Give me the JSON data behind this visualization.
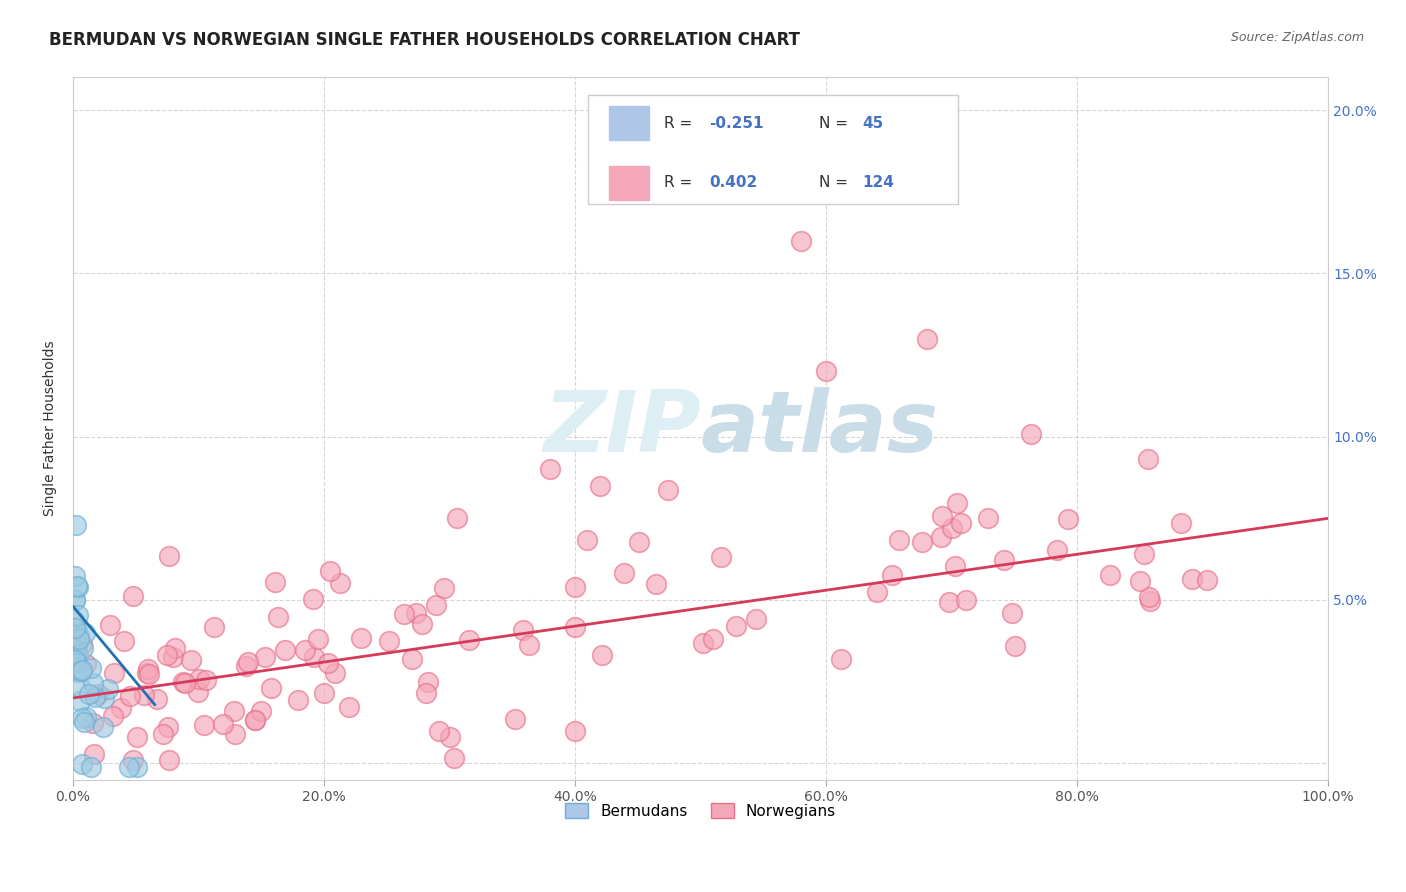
{
  "title": "BERMUDAN VS NORWEGIAN SINGLE FATHER HOUSEHOLDS CORRELATION CHART",
  "source": "Source: ZipAtlas.com",
  "ylabel": "Single Father Households",
  "xlim": [
    0,
    1.0
  ],
  "ylim": [
    -0.005,
    0.21
  ],
  "bermudan_color": "#6baed6",
  "bermudan_face_color": "#9ecae1",
  "norwegian_color": "#e8708a",
  "norwegian_face_color": "#f4a7b9",
  "bermudan_line_color": "#2171b5",
  "norwegian_line_color": "#d63a5a",
  "background_color": "#ffffff",
  "grid_color": "#cccccc",
  "watermark_color": "#ddeef5",
  "title_fontsize": 12,
  "axis_label_fontsize": 10,
  "tick_fontsize": 10,
  "legend_fontsize": 11,
  "right_tick_color": "#4472c4",
  "bermudan_R": -0.251,
  "bermudan_N": 45,
  "norwegian_R": 0.402,
  "norwegian_N": 124,
  "berm_legend_color": "#aec6e8",
  "norw_legend_color": "#f4a7b9"
}
